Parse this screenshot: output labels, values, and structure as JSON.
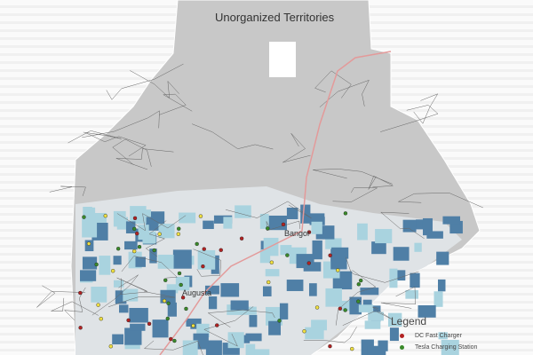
{
  "map": {
    "region_label": "Unorganized Territories",
    "cities": [
      "Bangor",
      "Augusta"
    ],
    "colors": {
      "land": "#c8c8c8",
      "dark_blue": "#4f7fa6",
      "light_blue": "#a9d3df",
      "road": "#666666",
      "highway": "#e39a9a"
    }
  },
  "legend": {
    "title": "Legend",
    "items": [
      {
        "label": "DC Fast Charger",
        "color": "#b22222"
      },
      {
        "label": "Tesla Charging Station",
        "color": "#3a8a2a"
      }
    ]
  }
}
